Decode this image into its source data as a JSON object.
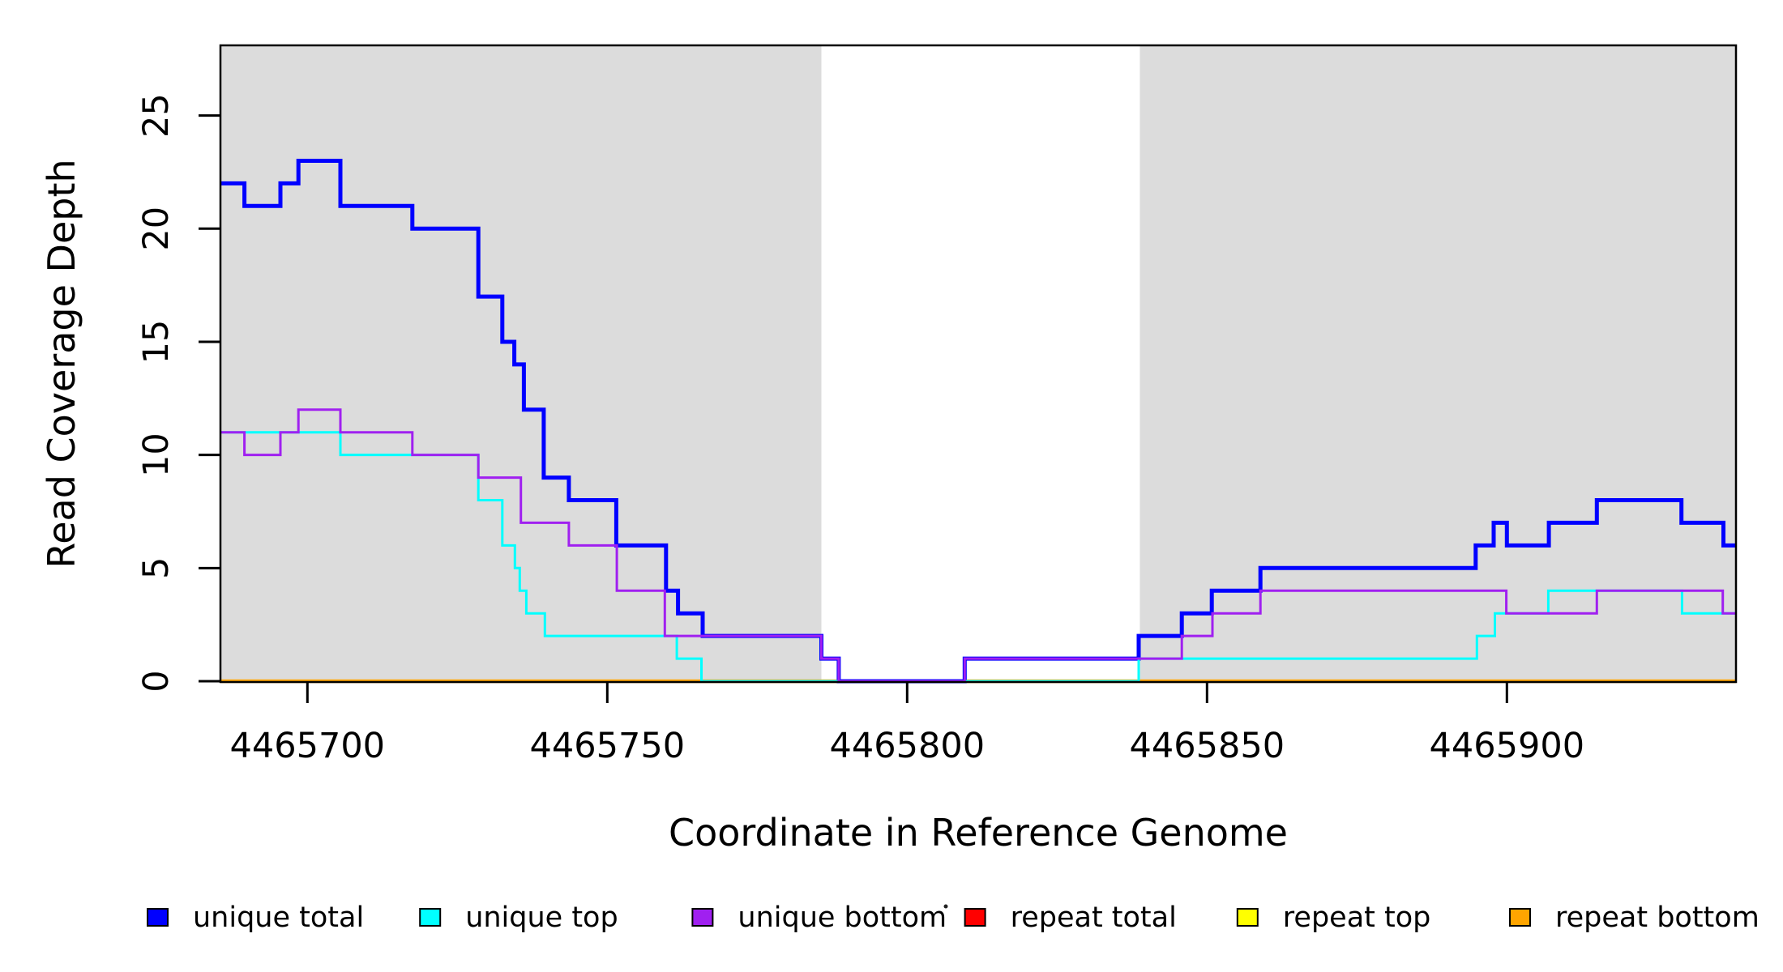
{
  "figure": {
    "background_color": "#FFFFFF",
    "plot_box_color": "#000000",
    "shade_color": "#DCDCDC"
  },
  "chart_data": {
    "type": "line",
    "subtype": "step",
    "title": "",
    "xlabel": "Coordinate in Reference Genome",
    "ylabel": "Read Coverage Depth",
    "xlim": [
      4465685.5,
      4465938.2
    ],
    "ylim": [
      0,
      28.1
    ],
    "grid": "off",
    "legend_position": "bottom",
    "x_ticks": [
      4465700,
      4465750,
      4465800,
      4465850,
      4465900
    ],
    "y_ticks": [
      0,
      5,
      10,
      15,
      20,
      25
    ],
    "background_shading": {
      "color": "#DCDCDC",
      "regions": [
        [
          4465685.5,
          4465785.7
        ],
        [
          4465838.8,
          4465938.2
        ]
      ],
      "gap_region": [
        4465785.7,
        4465838.8
      ]
    },
    "x_end": 4465938.2,
    "series": [
      {
        "name": "repeat total",
        "color": "#FF0000",
        "width": 3,
        "steps": [
          [
            4465685.5,
            0
          ]
        ]
      },
      {
        "name": "repeat top",
        "color": "#FFFF00",
        "width": 3,
        "steps": [
          [
            4465685.5,
            0
          ]
        ]
      },
      {
        "name": "repeat bottom",
        "color": "#FFA500",
        "width": 4.5,
        "steps": [
          [
            4465685.5,
            0
          ]
        ]
      },
      {
        "name": "unique total",
        "color": "#0000FF",
        "width": 5,
        "steps": [
          [
            4465685.5,
            22
          ],
          [
            4465689.5,
            21
          ],
          [
            4465695.5,
            22
          ],
          [
            4465698.5,
            23
          ],
          [
            4465705.5,
            21
          ],
          [
            4465717.5,
            20
          ],
          [
            4465728.5,
            17
          ],
          [
            4465732.5,
            15
          ],
          [
            4465734.5,
            14
          ],
          [
            4465736.1,
            12
          ],
          [
            4465739.4,
            9
          ],
          [
            4465743.6,
            8
          ],
          [
            4465751.5,
            6
          ],
          [
            4465759.8,
            4
          ],
          [
            4465761.8,
            3
          ],
          [
            4465765.9,
            2
          ],
          [
            4465785.7,
            1
          ],
          [
            4465788.6,
            0
          ],
          [
            4465809.6,
            1
          ],
          [
            4465838.6,
            2
          ],
          [
            4465845.8,
            3
          ],
          [
            4465850.8,
            4
          ],
          [
            4465858.9,
            5
          ],
          [
            4465894.8,
            6
          ],
          [
            4465897.8,
            7
          ],
          [
            4465900.0,
            6
          ],
          [
            4465907.0,
            7
          ],
          [
            4465915.0,
            8
          ],
          [
            4465929.1,
            7
          ],
          [
            4465936.1,
            6
          ]
        ]
      },
      {
        "name": "unique top",
        "color": "#00FFFF",
        "width": 3,
        "steps": [
          [
            4465685.5,
            11
          ],
          [
            4465705.5,
            10
          ],
          [
            4465728.5,
            8
          ],
          [
            4465732.5,
            6
          ],
          [
            4465734.6,
            5
          ],
          [
            4465735.4,
            4
          ],
          [
            4465736.5,
            3
          ],
          [
            4465739.6,
            2
          ],
          [
            4465761.6,
            1
          ],
          [
            4465765.7,
            0
          ],
          [
            4465838.6,
            1
          ],
          [
            4465895.0,
            2
          ],
          [
            4465898.0,
            3
          ],
          [
            4465906.9,
            4
          ],
          [
            4465929.2,
            3
          ]
        ]
      },
      {
        "name": "unique bottom",
        "color": "#A020F0",
        "width": 3,
        "steps": [
          [
            4465685.5,
            11
          ],
          [
            4465689.5,
            10
          ],
          [
            4465695.5,
            11
          ],
          [
            4465698.5,
            12
          ],
          [
            4465705.5,
            11
          ],
          [
            4465717.5,
            10
          ],
          [
            4465728.5,
            9
          ],
          [
            4465735.6,
            7
          ],
          [
            4465743.6,
            6
          ],
          [
            4465751.6,
            4
          ],
          [
            4465759.6,
            2
          ],
          [
            4465785.7,
            1
          ],
          [
            4465788.6,
            0
          ],
          [
            4465809.6,
            1
          ],
          [
            4465845.8,
            2
          ],
          [
            4465850.9,
            3
          ],
          [
            4465858.9,
            4
          ],
          [
            4465899.9,
            3
          ],
          [
            4465915.0,
            4
          ],
          [
            4465936.0,
            3
          ]
        ]
      }
    ],
    "legend": [
      {
        "label": "unique total",
        "color": "#0000FF"
      },
      {
        "label": "unique top",
        "color": "#00FFFF"
      },
      {
        "label": "unique bottom",
        "color": "#A020F0"
      },
      {
        "label": "repeat total",
        "color": "#FF0000"
      },
      {
        "label": "repeat top",
        "color": "#FFFF00"
      },
      {
        "label": "repeat bottom",
        "color": "#FFA500"
      }
    ],
    "stray_mark": {
      "glyph": ".",
      "near": "repeat total legend box"
    }
  }
}
